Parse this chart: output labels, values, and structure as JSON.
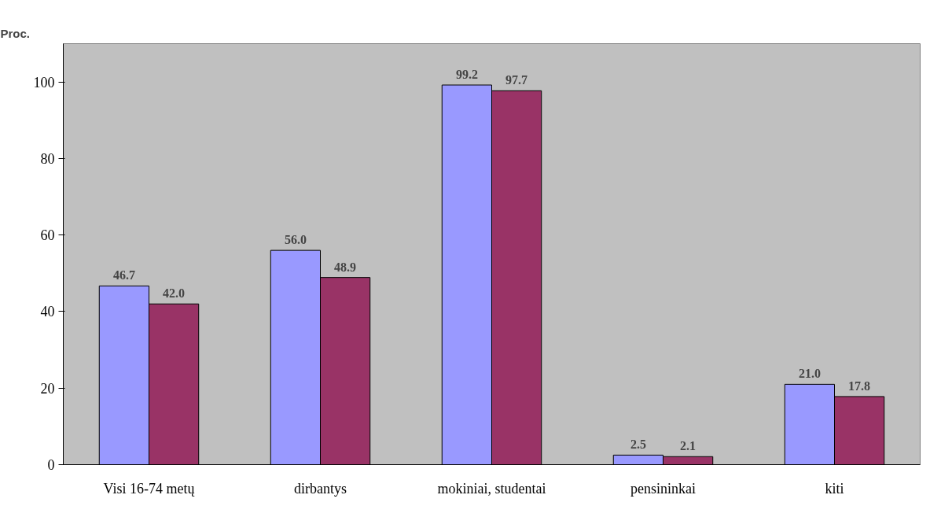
{
  "chart_data": {
    "type": "bar",
    "ylabel": "Proc.",
    "categories": [
      "Visi 16-74 metų",
      "dirbantys",
      "mokiniai, studentai",
      "pensininkai",
      "kiti"
    ],
    "series": [
      {
        "color": "#9999ff",
        "values": [
          46.7,
          56.0,
          99.2,
          2.5,
          21.0
        ],
        "value_labels": [
          "46.7",
          "56.0",
          "99.2",
          "2.5",
          "21.0"
        ]
      },
      {
        "color": "#993366",
        "values": [
          42.0,
          48.9,
          97.7,
          2.1,
          17.8
        ],
        "value_labels": [
          "42.0",
          "48.9",
          "97.7",
          "2.1",
          "17.8"
        ]
      }
    ],
    "ylim": [
      0,
      110
    ],
    "yticks": [
      0,
      20,
      40,
      60,
      80,
      100
    ],
    "grid": false
  }
}
